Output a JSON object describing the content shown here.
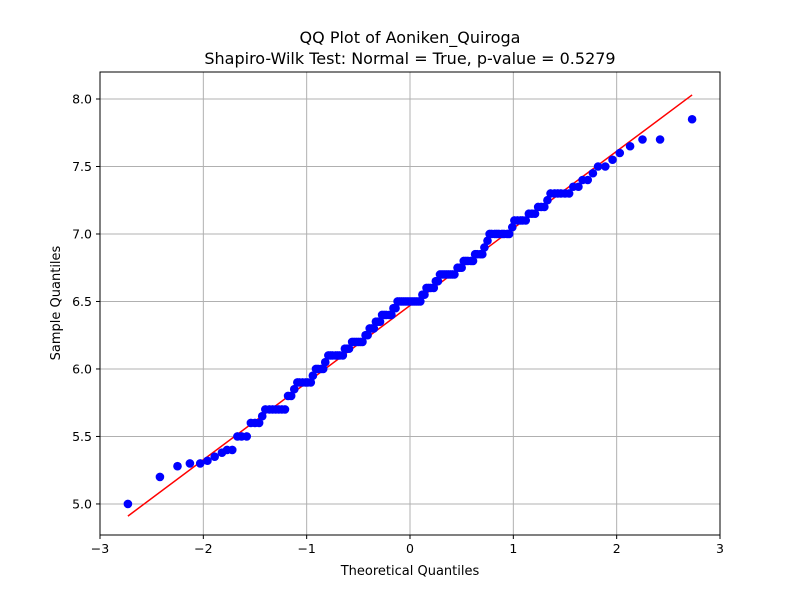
{
  "chart_data": {
    "type": "scatter",
    "title_line1": "QQ Plot of Aoniken_Quiroga",
    "title_line2": "Shapiro-Wilk Test: Normal = True, p-value = 0.5279",
    "xlabel": "Theoretical Quantiles",
    "ylabel": "Sample Quantiles",
    "xlim": [
      -3,
      3
    ],
    "ylim": [
      4.77,
      8.2
    ],
    "xticks": [
      -3,
      -2,
      -1,
      0,
      1,
      2,
      3
    ],
    "xtick_labels": [
      "−3",
      "−2",
      "−1",
      "0",
      "1",
      "2",
      "3"
    ],
    "yticks": [
      5.0,
      5.5,
      6.0,
      6.5,
      7.0,
      7.5,
      8.0
    ],
    "ytick_labels": [
      "5.0",
      "5.5",
      "6.0",
      "6.5",
      "7.0",
      "7.5",
      "8.0"
    ],
    "grid": true,
    "point_color": "#0000ff",
    "line_color": "#ff0000",
    "reference_line": {
      "x": [
        -2.73,
        2.73
      ],
      "y": [
        4.91,
        8.03
      ]
    },
    "points": [
      [
        -2.73,
        5.0
      ],
      [
        -2.42,
        5.2
      ],
      [
        -2.25,
        5.28
      ],
      [
        -2.13,
        5.3
      ],
      [
        -2.03,
        5.3
      ],
      [
        -1.96,
        5.32
      ],
      [
        -1.89,
        5.35
      ],
      [
        -1.82,
        5.38
      ],
      [
        -1.77,
        5.4
      ],
      [
        -1.72,
        5.4
      ],
      [
        -1.67,
        5.5
      ],
      [
        -1.63,
        5.5
      ],
      [
        -1.58,
        5.5
      ],
      [
        -1.54,
        5.6
      ],
      [
        -1.5,
        5.6
      ],
      [
        -1.46,
        5.6
      ],
      [
        -1.43,
        5.65
      ],
      [
        -1.4,
        5.7
      ],
      [
        -1.36,
        5.7
      ],
      [
        -1.33,
        5.7
      ],
      [
        -1.3,
        5.7
      ],
      [
        -1.27,
        5.7
      ],
      [
        -1.24,
        5.7
      ],
      [
        -1.21,
        5.7
      ],
      [
        -1.18,
        5.8
      ],
      [
        -1.15,
        5.8
      ],
      [
        -1.12,
        5.85
      ],
      [
        -1.09,
        5.9
      ],
      [
        -1.07,
        5.9
      ],
      [
        -1.04,
        5.9
      ],
      [
        -1.01,
        5.9
      ],
      [
        -0.99,
        5.9
      ],
      [
        -0.96,
        5.9
      ],
      [
        -0.94,
        5.95
      ],
      [
        -0.91,
        6.0
      ],
      [
        -0.89,
        6.0
      ],
      [
        -0.86,
        6.0
      ],
      [
        -0.84,
        6.0
      ],
      [
        -0.82,
        6.05
      ],
      [
        -0.79,
        6.1
      ],
      [
        -0.77,
        6.1
      ],
      [
        -0.75,
        6.1
      ],
      [
        -0.72,
        6.1
      ],
      [
        -0.7,
        6.1
      ],
      [
        -0.68,
        6.1
      ],
      [
        -0.65,
        6.1
      ],
      [
        -0.63,
        6.15
      ],
      [
        -0.61,
        6.15
      ],
      [
        -0.59,
        6.15
      ],
      [
        -0.56,
        6.2
      ],
      [
        -0.54,
        6.2
      ],
      [
        -0.52,
        6.2
      ],
      [
        -0.5,
        6.2
      ],
      [
        -0.48,
        6.2
      ],
      [
        -0.46,
        6.2
      ],
      [
        -0.43,
        6.25
      ],
      [
        -0.41,
        6.25
      ],
      [
        -0.39,
        6.3
      ],
      [
        -0.37,
        6.3
      ],
      [
        -0.35,
        6.3
      ],
      [
        -0.33,
        6.35
      ],
      [
        -0.31,
        6.35
      ],
      [
        -0.29,
        6.35
      ],
      [
        -0.27,
        6.4
      ],
      [
        -0.25,
        6.4
      ],
      [
        -0.23,
        6.4
      ],
      [
        -0.2,
        6.4
      ],
      [
        -0.18,
        6.4
      ],
      [
        -0.16,
        6.45
      ],
      [
        -0.14,
        6.45
      ],
      [
        -0.12,
        6.5
      ],
      [
        -0.1,
        6.5
      ],
      [
        -0.08,
        6.5
      ],
      [
        -0.06,
        6.5
      ],
      [
        -0.04,
        6.5
      ],
      [
        -0.02,
        6.5
      ],
      [
        0.0,
        6.5
      ],
      [
        0.02,
        6.5
      ],
      [
        0.04,
        6.5
      ],
      [
        0.06,
        6.5
      ],
      [
        0.08,
        6.5
      ],
      [
        0.1,
        6.5
      ],
      [
        0.12,
        6.55
      ],
      [
        0.14,
        6.55
      ],
      [
        0.16,
        6.6
      ],
      [
        0.18,
        6.6
      ],
      [
        0.2,
        6.6
      ],
      [
        0.23,
        6.6
      ],
      [
        0.25,
        6.65
      ],
      [
        0.27,
        6.65
      ],
      [
        0.29,
        6.7
      ],
      [
        0.31,
        6.7
      ],
      [
        0.33,
        6.7
      ],
      [
        0.35,
        6.7
      ],
      [
        0.37,
        6.7
      ],
      [
        0.39,
        6.7
      ],
      [
        0.41,
        6.7
      ],
      [
        0.43,
        6.7
      ],
      [
        0.46,
        6.75
      ],
      [
        0.48,
        6.75
      ],
      [
        0.5,
        6.75
      ],
      [
        0.52,
        6.8
      ],
      [
        0.54,
        6.8
      ],
      [
        0.56,
        6.8
      ],
      [
        0.59,
        6.8
      ],
      [
        0.61,
        6.8
      ],
      [
        0.63,
        6.85
      ],
      [
        0.65,
        6.85
      ],
      [
        0.68,
        6.85
      ],
      [
        0.7,
        6.85
      ],
      [
        0.72,
        6.9
      ],
      [
        0.75,
        6.95
      ],
      [
        0.77,
        7.0
      ],
      [
        0.79,
        7.0
      ],
      [
        0.82,
        7.0
      ],
      [
        0.84,
        7.0
      ],
      [
        0.86,
        7.0
      ],
      [
        0.89,
        7.0
      ],
      [
        0.91,
        7.0
      ],
      [
        0.94,
        7.0
      ],
      [
        0.96,
        7.0
      ],
      [
        0.99,
        7.05
      ],
      [
        1.01,
        7.1
      ],
      [
        1.04,
        7.1
      ],
      [
        1.07,
        7.1
      ],
      [
        1.09,
        7.1
      ],
      [
        1.12,
        7.1
      ],
      [
        1.15,
        7.15
      ],
      [
        1.18,
        7.15
      ],
      [
        1.21,
        7.15
      ],
      [
        1.24,
        7.2
      ],
      [
        1.27,
        7.2
      ],
      [
        1.3,
        7.2
      ],
      [
        1.33,
        7.25
      ],
      [
        1.36,
        7.3
      ],
      [
        1.4,
        7.3
      ],
      [
        1.43,
        7.3
      ],
      [
        1.46,
        7.3
      ],
      [
        1.5,
        7.3
      ],
      [
        1.54,
        7.3
      ],
      [
        1.58,
        7.35
      ],
      [
        1.63,
        7.35
      ],
      [
        1.67,
        7.4
      ],
      [
        1.72,
        7.4
      ],
      [
        1.77,
        7.45
      ],
      [
        1.82,
        7.5
      ],
      [
        1.89,
        7.5
      ],
      [
        1.96,
        7.55
      ],
      [
        2.03,
        7.6
      ],
      [
        2.13,
        7.65
      ],
      [
        2.25,
        7.7
      ],
      [
        2.42,
        7.7
      ],
      [
        2.73,
        7.85
      ]
    ]
  }
}
